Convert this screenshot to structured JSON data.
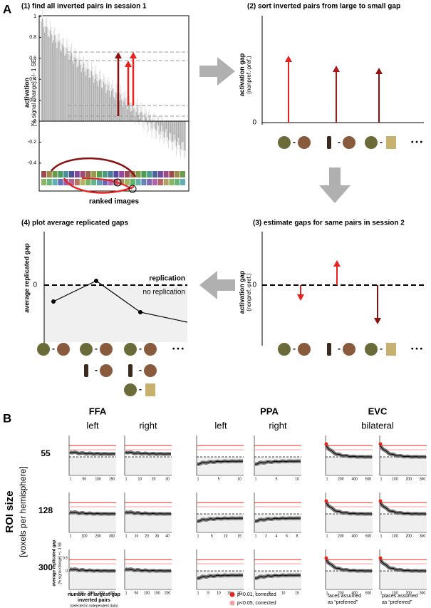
{
  "panel_a": {
    "label": "A",
    "step1": {
      "title": "(1) find all inverted pairs in session 1",
      "y_label": "activation",
      "y_sublabel": "[% signal change] +/- 1 SE",
      "y_ticks": [
        "1",
        "0.8",
        "0.6",
        "0.4",
        "0.2",
        "0",
        "-0.2",
        "-0.4"
      ],
      "x_label": "ranked images"
    },
    "step2": {
      "title": "(2) sort inverted pairs from large to small gap",
      "y_label": "activation gap",
      "y_sublabel": "(nonpref.-pref.)",
      "zero": "0",
      "more": "• • •"
    },
    "step3": {
      "title": "(3) estimate gaps for same pairs in session 2",
      "y_label": "activation gap",
      "y_sublabel": "(nonpref.-pref.)",
      "zero": "0",
      "more": "• • •"
    },
    "step4": {
      "title": "(4) plot average replicated gaps",
      "y_label": "average replicated gap",
      "zero": "0",
      "above": "replication",
      "below": "no replication",
      "more": "• • •"
    },
    "pair_sep": "-"
  },
  "panel_b": {
    "label": "B",
    "row_title": "ROI size",
    "row_subtitle": "[voxels per hemisphere]",
    "rows": [
      "55",
      "128",
      "300"
    ],
    "groups": [
      {
        "name": "FFA",
        "columns": [
          "left",
          "right"
        ]
      },
      {
        "name": "PPA",
        "columns": [
          "left",
          "right"
        ]
      },
      {
        "name": "EVC",
        "columns": [
          "bilateral"
        ]
      }
    ],
    "x_ticks": [
      [
        [
          "1",
          "50",
          "100",
          "150"
        ],
        [
          "1",
          "10",
          "20",
          "30"
        ],
        [
          "1",
          "5",
          "10"
        ],
        [
          "1",
          "5",
          "10"
        ],
        [
          "1",
          "200",
          "400",
          "600"
        ],
        [
          "1",
          "100",
          "200",
          "300"
        ]
      ],
      [
        [
          "1",
          "100",
          "200",
          "300"
        ],
        [
          "1",
          "10",
          "20",
          "30",
          "40"
        ],
        [
          "1",
          "5",
          "10",
          "15"
        ],
        [
          "1",
          "2",
          "4",
          "6",
          "8"
        ],
        [
          "1",
          "200",
          "400",
          "600"
        ],
        [
          "1",
          "100",
          "200",
          "300"
        ]
      ],
      [
        [
          "1",
          "100",
          "200",
          "300",
          "400"
        ],
        [
          "1",
          "50",
          "100",
          "150",
          "200"
        ],
        [
          "1",
          "5",
          "10",
          "15",
          "20"
        ],
        [
          "1",
          "5",
          "10",
          "15"
        ],
        [
          "1",
          "200",
          "400",
          "600"
        ],
        [
          "1",
          "100",
          "200",
          "300"
        ]
      ]
    ],
    "y_label": "average replicated gap",
    "y_sublabel": "[% signal change] +/- 1 SE",
    "y_ticks": [
      "0.5",
      "0"
    ],
    "x_label": [
      "number of largest-gap",
      "inverted pairs",
      "(selected in independent data)"
    ],
    "legend": [
      {
        "label": "p<0.01, corrected",
        "color": "#e8231f"
      },
      {
        "label": "p<0.05, corrected",
        "color": "#f4a0a0"
      }
    ],
    "evc_notes": [
      [
        "faces assumed",
        "as “preferred”"
      ],
      [
        "places assumed",
        "as “preferred”"
      ]
    ]
  }
}
